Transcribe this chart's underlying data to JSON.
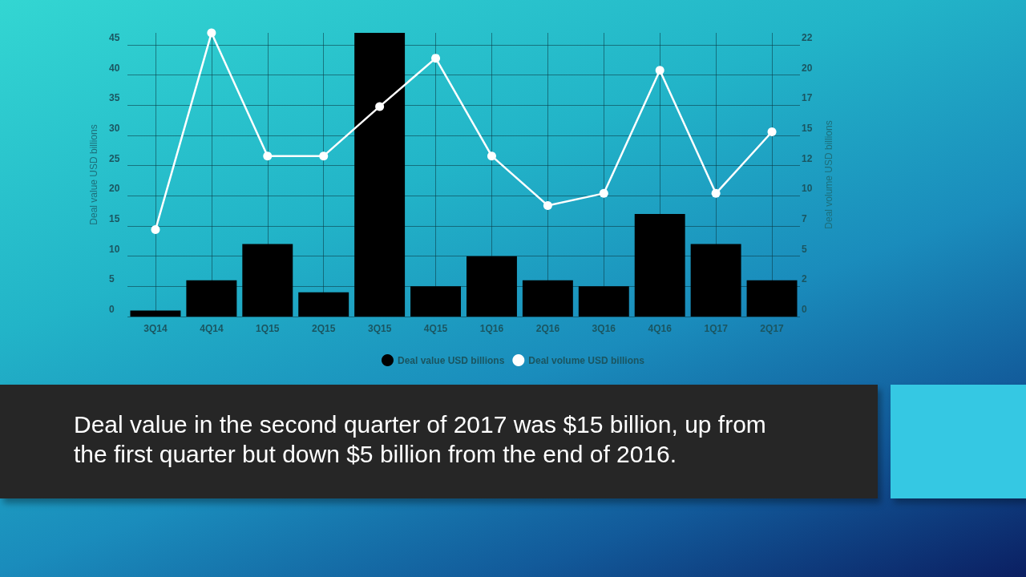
{
  "chart_data": {
    "type": "bar",
    "categories": [
      "3Q14",
      "4Q14",
      "1Q15",
      "2Q15",
      "3Q15",
      "4Q15",
      "1Q16",
      "2Q16",
      "3Q16",
      "4Q16",
      "1Q17",
      "2Q17"
    ],
    "series": [
      {
        "name": "Deal value USD billions",
        "color": "#000000",
        "values": [
          1,
          6,
          12,
          4,
          47,
          5,
          10,
          6,
          5,
          17,
          12,
          6
        ]
      },
      {
        "name": "Deal volume USD billions",
        "type": "line",
        "axis": "y2",
        "color": "#ffffff",
        "values": [
          7.2,
          23.5,
          13.3,
          13.3,
          17.4,
          21.4,
          13.3,
          9.2,
          10.2,
          20.4,
          10.2,
          15.3
        ]
      }
    ],
    "ylabel": "Deal value USD billions",
    "y2label": "Deal volume USD billions",
    "ylim": [
      0,
      47
    ],
    "yticks": [
      0,
      5,
      10,
      15,
      20,
      25,
      30,
      35,
      40,
      45
    ],
    "y2lim": [
      0,
      23.5
    ],
    "y2ticks": [
      0,
      {
        "value": 2.5,
        "label": "2"
      },
      5,
      {
        "value": 7.5,
        "label": "7"
      },
      10,
      {
        "value": 12.5,
        "label": "12"
      },
      15,
      {
        "value": 17.5,
        "label": "17"
      },
      20,
      {
        "value": 22.5,
        "label": "22"
      }
    ],
    "grid": true,
    "legend": "bottom",
    "marker": "circle",
    "line_style": "solid",
    "annotations": [
      "Deal value in the second quarter of 2017 was $15 billion, up from the first quarter but down $5 billion from the end of 2016."
    ]
  }
}
